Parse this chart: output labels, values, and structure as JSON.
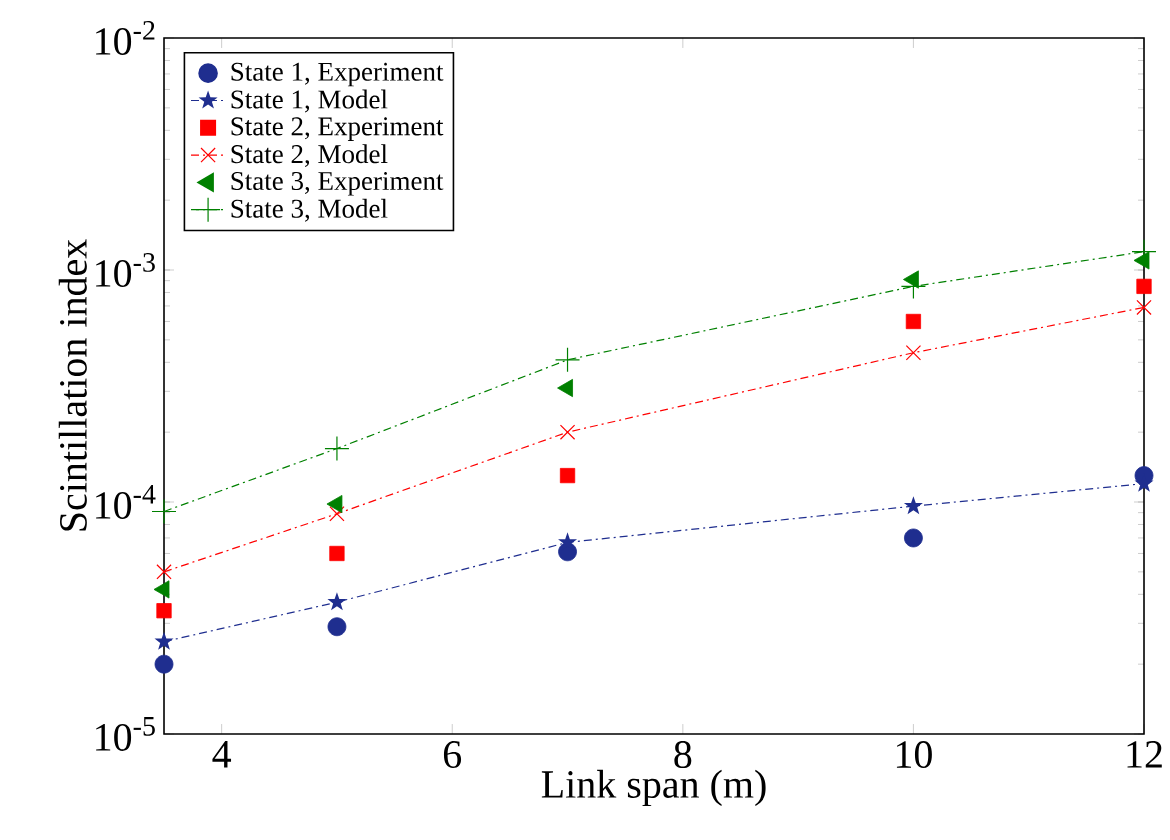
{
  "chart_data": {
    "type": "line",
    "xlabel": "Link span (m)",
    "ylabel": "Scintillation index",
    "x": [
      3.5,
      5,
      7,
      10,
      12
    ],
    "series": [
      {
        "name": "State 1, Experiment",
        "type": "scatter",
        "color": "#1f2e8f",
        "marker": "circle",
        "values": [
          2e-05,
          2.9e-05,
          6.1e-05,
          7e-05,
          0.00013
        ]
      },
      {
        "name": "State 1, Model",
        "type": "line",
        "color": "#1f2e8f",
        "marker": "star",
        "line_style": "dashdot",
        "values": [
          2.5e-05,
          3.7e-05,
          6.7e-05,
          9.6e-05,
          0.00012
        ]
      },
      {
        "name": "State 2, Experiment",
        "type": "scatter",
        "color": "#ff0000",
        "marker": "square",
        "values": [
          3.4e-05,
          6e-05,
          0.00013,
          0.0006,
          0.00085
        ]
      },
      {
        "name": "State 2, Model",
        "type": "line",
        "color": "#ff0000",
        "marker": "cross",
        "line_style": "dashdot",
        "values": [
          5e-05,
          8.9e-05,
          0.0002,
          0.00044,
          0.00069
        ]
      },
      {
        "name": "State 3, Experiment",
        "type": "scatter",
        "color": "#008000",
        "marker": "triangle",
        "values": [
          4.2e-05,
          9.8e-05,
          0.00031,
          0.00091,
          0.0011
        ]
      },
      {
        "name": "State 3, Model",
        "type": "line",
        "color": "#008000",
        "marker": "plus",
        "line_style": "dashdot",
        "values": [
          9.1e-05,
          0.00017,
          0.00041,
          0.00085,
          0.0012
        ]
      }
    ],
    "log": true,
    "xlim": [
      3.5,
      12
    ],
    "ylim": [
      1e-05,
      0.01
    ],
    "xticks": [
      4,
      6,
      8,
      10,
      12
    ],
    "yticks": [
      {
        "value": 1e-05,
        "label": "10$^{-5}$"
      },
      {
        "value": 0.0001,
        "label": "10$^{-4}$"
      },
      {
        "value": 0.001,
        "label": "10$^{-3}$"
      },
      {
        "value": 0.01,
        "label": "10$^{-2}$"
      }
    ],
    "grid": false,
    "legend": "top left"
  }
}
